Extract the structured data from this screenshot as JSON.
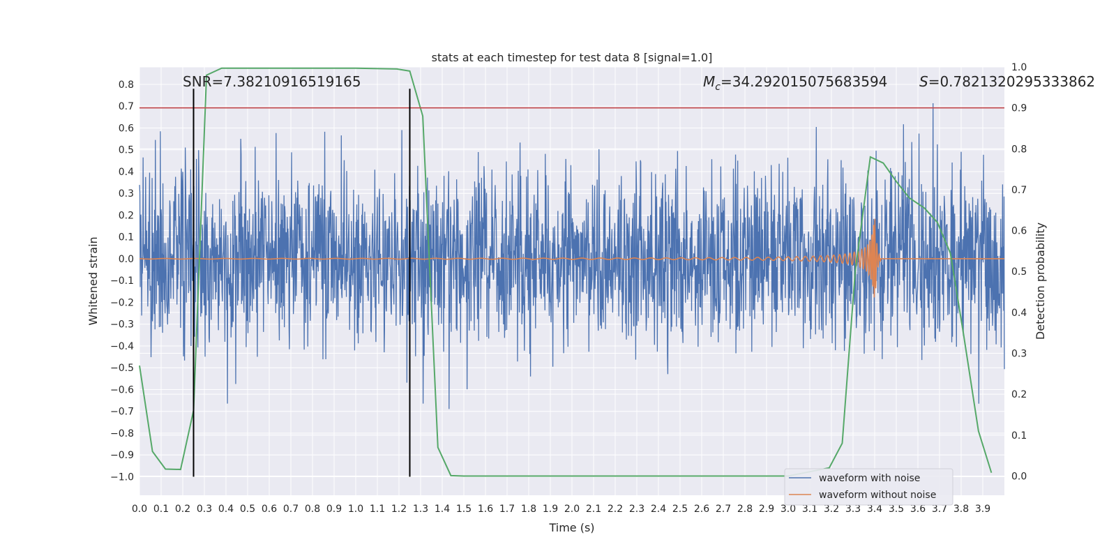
{
  "chart_data": {
    "type": "line",
    "title": "stats at each timestep for test data 8 [signal=1.0]",
    "xlabel": "Time (s)",
    "ylabel": "Whitened strain",
    "y2label": "Detection probability",
    "xlim": [
      0.0,
      4.0
    ],
    "ylim": [
      -1.085,
      0.88
    ],
    "y2lim": [
      -0.047,
      1.0
    ],
    "grid": true,
    "legend_position": "lower-right",
    "xticks": [
      "0.0",
      "0.1",
      "0.2",
      "0.3",
      "0.4",
      "0.5",
      "0.6",
      "0.7",
      "0.8",
      "0.9",
      "1.0",
      "1.1",
      "1.2",
      "1.3",
      "1.4",
      "1.5",
      "1.6",
      "1.7",
      "1.8",
      "1.9",
      "2.0",
      "2.1",
      "2.2",
      "2.3",
      "2.4",
      "2.5",
      "2.6",
      "2.7",
      "2.8",
      "2.9",
      "3.0",
      "3.1",
      "3.2",
      "3.3",
      "3.4",
      "3.5",
      "3.6",
      "3.7",
      "3.8",
      "3.9"
    ],
    "yticks": [
      "0.8",
      "0.7",
      "0.6",
      "0.5",
      "0.4",
      "0.3",
      "0.2",
      "0.1",
      "0.0",
      "−0.1",
      "−0.2",
      "−0.3",
      "−0.4",
      "−0.5",
      "−0.6",
      "−0.7",
      "−0.8",
      "−0.9",
      "−1.0"
    ],
    "y2ticks": [
      "1.0",
      "0.9",
      "0.8",
      "0.7",
      "0.6",
      "0.5",
      "0.4",
      "0.3",
      "0.2",
      "0.1",
      "0.0"
    ],
    "annotations": {
      "snr": "SNR=7.38210916519165",
      "mc_symbol": "M",
      "mc_sub": "c",
      "mc_value": "=34.292015075683594",
      "s_symbol": "S",
      "s_value": "=0.7821320295333862"
    },
    "threshold": {
      "value": 0.9,
      "axis": "y2",
      "color": "#c44e52"
    },
    "vertical_markers": {
      "x": [
        0.25,
        1.25
      ],
      "ymin": -1.0,
      "ymax": 0.78,
      "color": "#000000"
    },
    "series": [
      {
        "name": "waveform with noise",
        "axis": "y",
        "color": "#4c72b0",
        "envelope_std": 0.2
      },
      {
        "name": "waveform without noise",
        "axis": "y",
        "color": "#dd8452",
        "merger_time": 3.4
      },
      {
        "axis": "y2",
        "color": "#55a868",
        "x": [
          0.0,
          0.06,
          0.12,
          0.19,
          0.25,
          0.31,
          0.38,
          0.5,
          0.75,
          1.0,
          1.19,
          1.25,
          1.31,
          1.38,
          1.44,
          1.5,
          1.75,
          2.0,
          2.5,
          3.0,
          3.19,
          3.25,
          3.31,
          3.38,
          3.44,
          3.5,
          3.56,
          3.63,
          3.69,
          3.75,
          3.81,
          3.88,
          3.94
        ],
        "values": [
          0.27,
          0.06,
          0.017,
          0.016,
          0.16,
          0.98,
          0.997,
          0.997,
          0.997,
          0.997,
          0.995,
          0.99,
          0.88,
          0.07,
          0.001,
          0.0,
          0.0,
          0.0,
          0.0,
          0.0,
          0.02,
          0.08,
          0.5,
          0.78,
          0.765,
          0.72,
          0.68,
          0.655,
          0.62,
          0.545,
          0.35,
          0.11,
          0.008
        ]
      }
    ]
  }
}
